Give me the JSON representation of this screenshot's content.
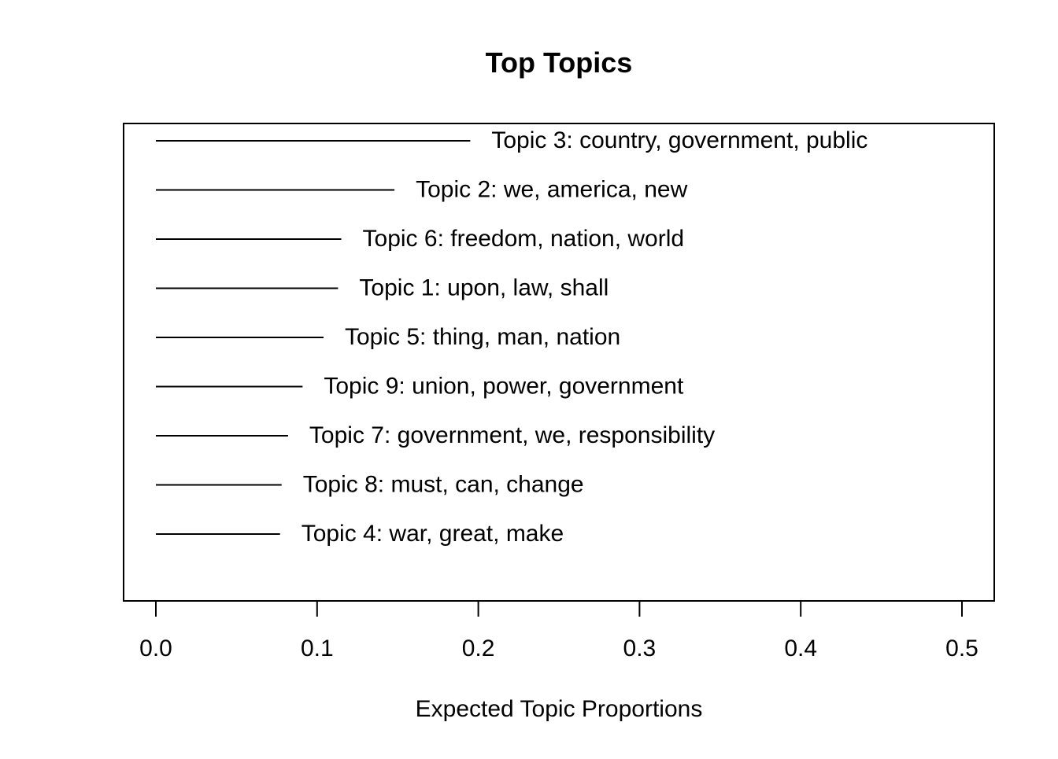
{
  "chart_data": {
    "type": "bar",
    "title": "Top Topics",
    "xlabel": "Expected Topic Proportions",
    "ylabel": "",
    "xlim": [
      0,
      0.5
    ],
    "x_ticks": [
      "0.0",
      "0.1",
      "0.2",
      "0.3",
      "0.4",
      "0.5"
    ],
    "x_tick_values": [
      0,
      0.1,
      0.2,
      0.3,
      0.4,
      0.5
    ],
    "orientation": "horizontal",
    "grid": false,
    "categories": [
      "Topic 3: country, government, public",
      "Topic 2: we, america, new",
      "Topic 6: freedom, nation, world",
      "Topic 1: upon, law, shall",
      "Topic 5: thing, man, nation",
      "Topic 9: union, power, government",
      "Topic 7: government, we, responsibility",
      "Topic 8: must, can, change",
      "Topic 4: war, great, make"
    ],
    "values": [
      0.195,
      0.148,
      0.115,
      0.113,
      0.104,
      0.091,
      0.082,
      0.078,
      0.077
    ]
  }
}
